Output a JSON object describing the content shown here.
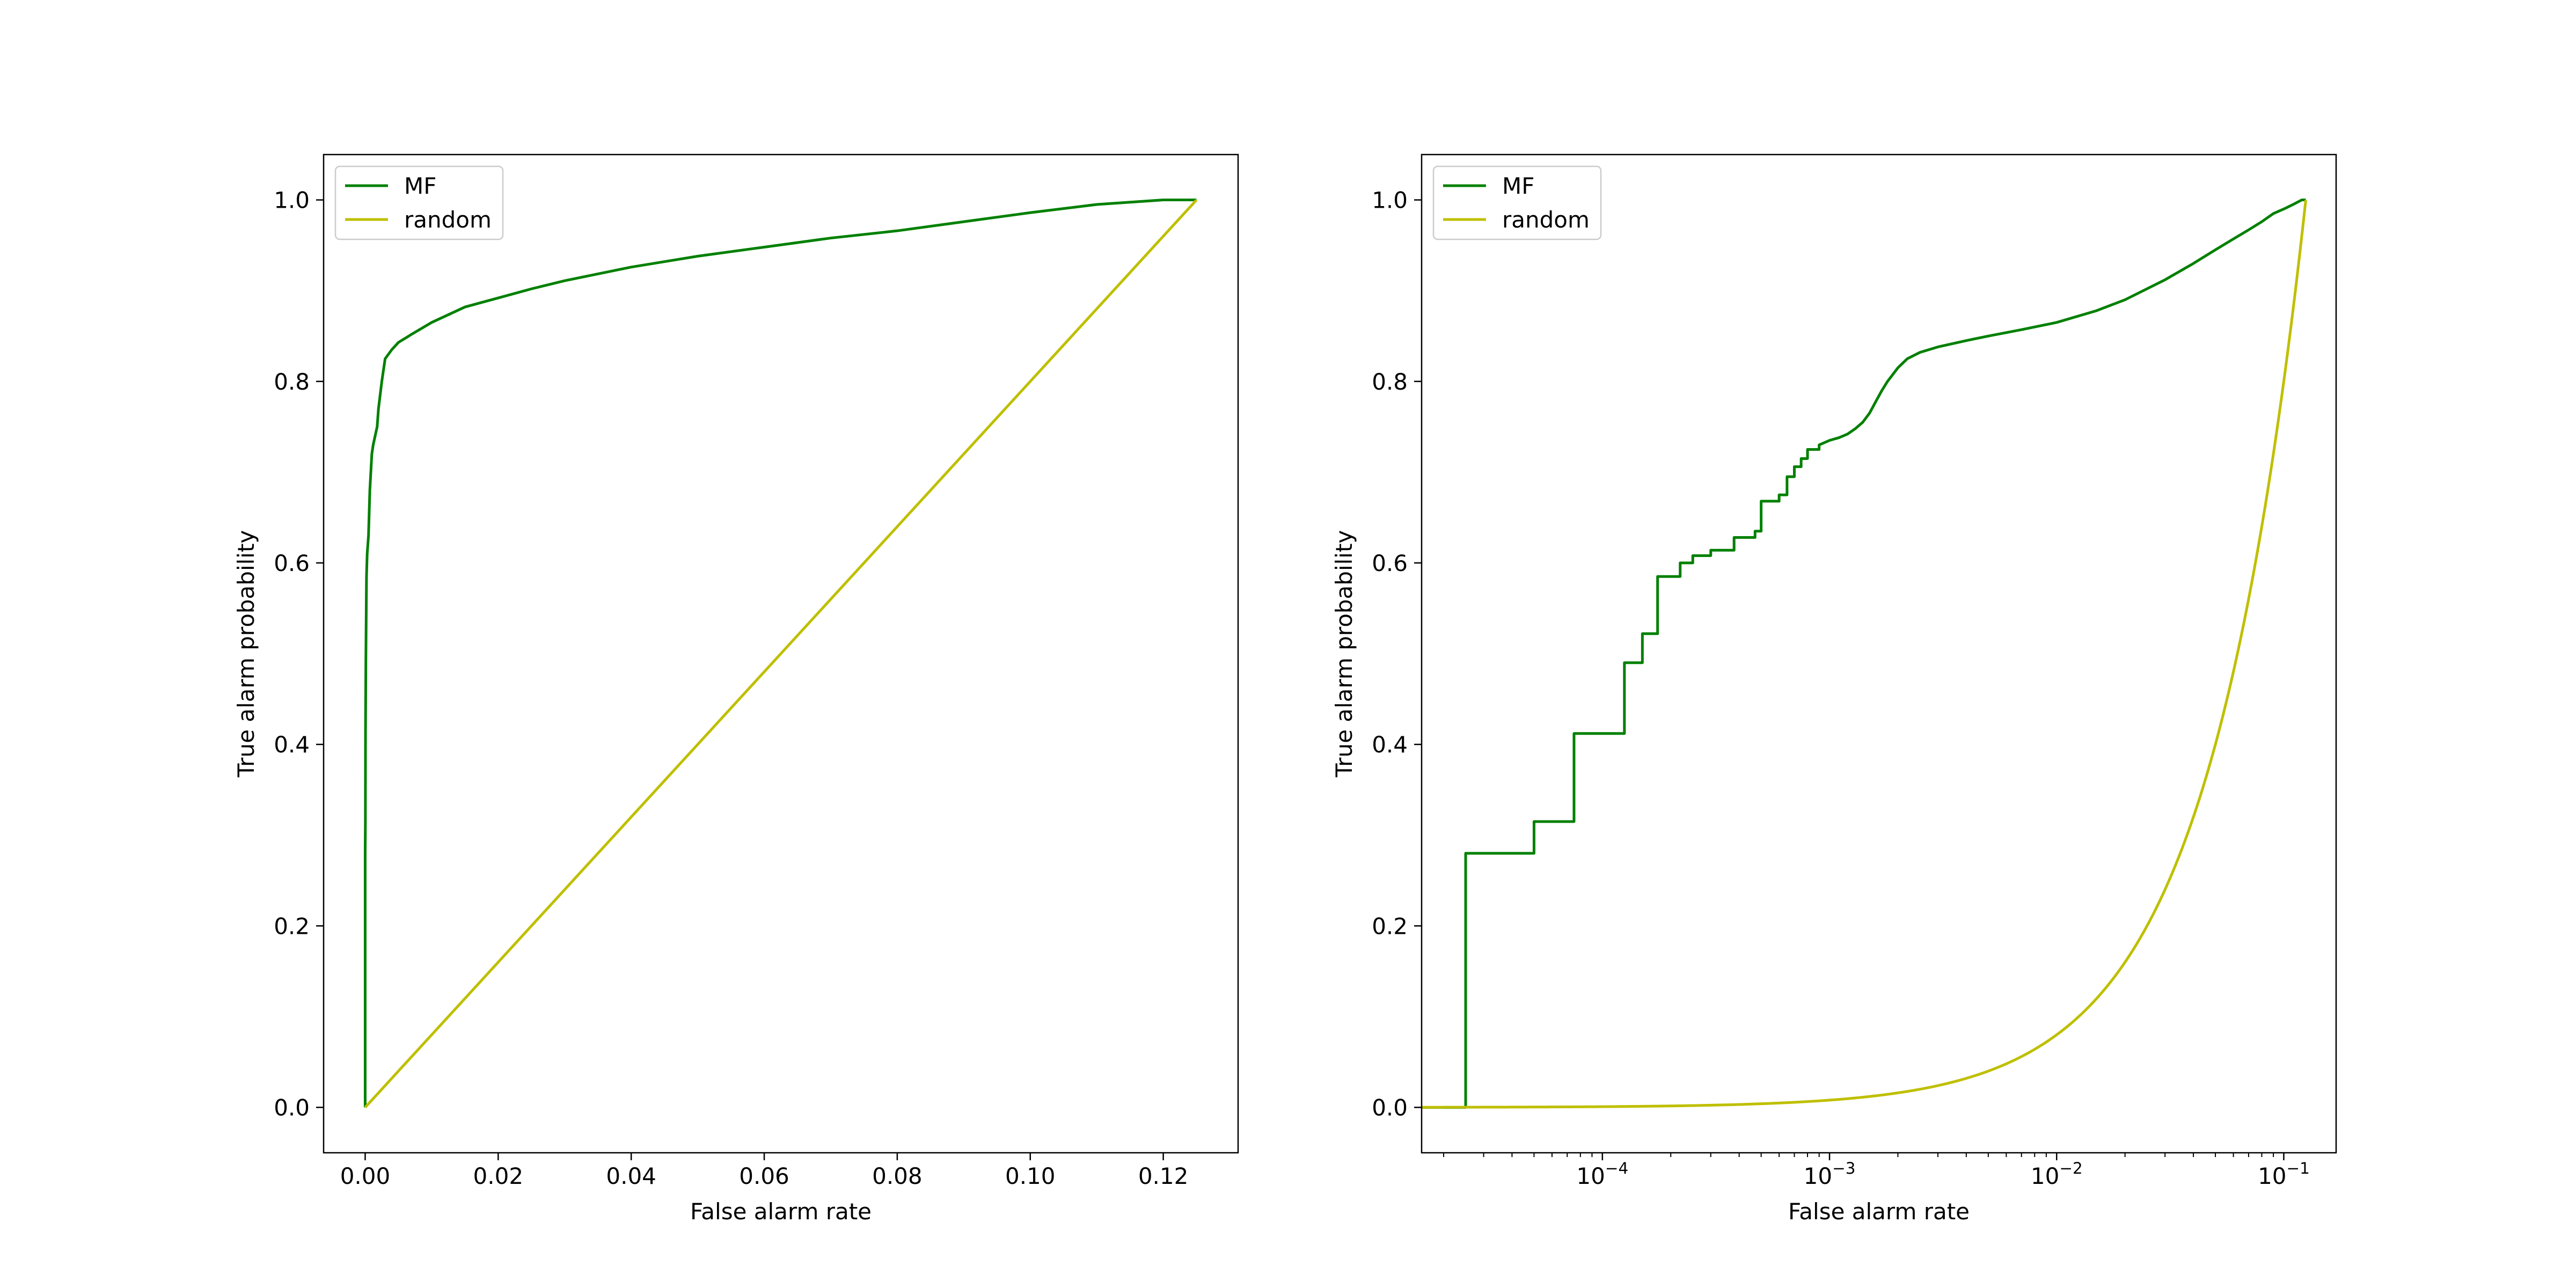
{
  "chart_data": [
    {
      "type": "line",
      "xscale": "linear",
      "xlabel": "False alarm rate",
      "ylabel": "True alarm probability",
      "xlim": [
        -0.00625,
        0.13125
      ],
      "ylim": [
        -0.05,
        1.05
      ],
      "xticks": [
        0.0,
        0.02,
        0.04,
        0.06,
        0.08,
        0.1,
        0.12
      ],
      "xtick_labels": [
        "0.00",
        "0.02",
        "0.04",
        "0.06",
        "0.08",
        "0.10",
        "0.12"
      ],
      "yticks": [
        0.0,
        0.2,
        0.4,
        0.6,
        0.8,
        1.0
      ],
      "ytick_labels": [
        "0.0",
        "0.2",
        "0.4",
        "0.6",
        "0.8",
        "1.0"
      ],
      "grid": false,
      "legend_position": "upper-left",
      "series": [
        {
          "name": "MF",
          "color": "#008000",
          "x": [
            0,
            0,
            3e-05,
            5e-05,
            0.0001,
            0.0002,
            0.0003,
            0.0005,
            0.0007,
            0.001,
            0.0012,
            0.0015,
            0.0018,
            0.002,
            0.0025,
            0.003,
            0.004,
            0.005,
            0.007,
            0.01,
            0.015,
            0.02,
            0.025,
            0.03,
            0.04,
            0.05,
            0.06,
            0.07,
            0.08,
            0.09,
            0.1,
            0.11,
            0.12,
            0.125
          ],
          "y": [
            0,
            0.28,
            0.315,
            0.412,
            0.49,
            0.585,
            0.61,
            0.63,
            0.68,
            0.72,
            0.73,
            0.74,
            0.75,
            0.77,
            0.8,
            0.825,
            0.835,
            0.843,
            0.852,
            0.865,
            0.882,
            0.892,
            0.902,
            0.911,
            0.926,
            0.938,
            0.948,
            0.958,
            0.966,
            0.976,
            0.986,
            0.995,
            1.0,
            1.0
          ]
        },
        {
          "name": "random",
          "color": "#bfbf00",
          "x": [
            0,
            0.125
          ],
          "y": [
            0,
            1.0
          ]
        }
      ]
    },
    {
      "type": "line",
      "xscale": "log",
      "xlabel": "False alarm rate",
      "ylabel": "True alarm probability",
      "xlim": [
        1.6e-05,
        0.17
      ],
      "ylim": [
        -0.05,
        1.05
      ],
      "xticks": [
        0.0001,
        0.001,
        0.01,
        0.1
      ],
      "xtick_labels": [
        {
          "base": "10",
          "exp": "−4"
        },
        {
          "base": "10",
          "exp": "−3"
        },
        {
          "base": "10",
          "exp": "−2"
        },
        {
          "base": "10",
          "exp": "−1"
        }
      ],
      "yticks": [
        0.0,
        0.2,
        0.4,
        0.6,
        0.8,
        1.0
      ],
      "ytick_labels": [
        "0.0",
        "0.2",
        "0.4",
        "0.6",
        "0.8",
        "1.0"
      ],
      "grid": false,
      "legend_position": "upper-left",
      "series": [
        {
          "name": "MF",
          "color": "#008000",
          "steps": true,
          "x": [
            2.5e-05,
            2.5e-05,
            5e-05,
            5e-05,
            7.5e-05,
            7.5e-05,
            0.000125,
            0.000125,
            0.00015,
            0.00015,
            0.000175,
            0.000175,
            0.00022,
            0.00022,
            0.00025,
            0.00025,
            0.0003,
            0.0003,
            0.00038,
            0.00038,
            0.00047,
            0.00047,
            0.0005,
            0.0005,
            0.0006,
            0.0006,
            0.00065,
            0.00065,
            0.0007,
            0.0007,
            0.00075,
            0.00075,
            0.0008,
            0.0008,
            0.0009,
            0.0009,
            0.001,
            0.0011,
            0.0012,
            0.0013,
            0.0014,
            0.0015,
            0.0016,
            0.0017,
            0.0018,
            0.002,
            0.0022,
            0.0025,
            0.003,
            0.004,
            0.005,
            0.007,
            0.01,
            0.015,
            0.02,
            0.03,
            0.04,
            0.05,
            0.06,
            0.07,
            0.08,
            0.09,
            0.1,
            0.11,
            0.12,
            0.125
          ],
          "y": [
            0.0,
            0.28,
            0.28,
            0.315,
            0.315,
            0.412,
            0.412,
            0.49,
            0.49,
            0.522,
            0.522,
            0.585,
            0.585,
            0.6,
            0.6,
            0.608,
            0.608,
            0.614,
            0.614,
            0.628,
            0.628,
            0.635,
            0.635,
            0.668,
            0.668,
            0.675,
            0.675,
            0.695,
            0.695,
            0.706,
            0.706,
            0.715,
            0.715,
            0.725,
            0.725,
            0.73,
            0.735,
            0.738,
            0.742,
            0.748,
            0.755,
            0.765,
            0.778,
            0.79,
            0.8,
            0.815,
            0.825,
            0.832,
            0.838,
            0.845,
            0.85,
            0.857,
            0.865,
            0.878,
            0.89,
            0.912,
            0.93,
            0.945,
            0.957,
            0.967,
            0.976,
            0.985,
            0.99,
            0.995,
            1.0,
            1.0
          ]
        },
        {
          "name": "random",
          "color": "#bfbf00",
          "x": [
            1.6e-05,
            0.125
          ],
          "y": [
            0.000128,
            1.0
          ]
        }
      ]
    }
  ]
}
